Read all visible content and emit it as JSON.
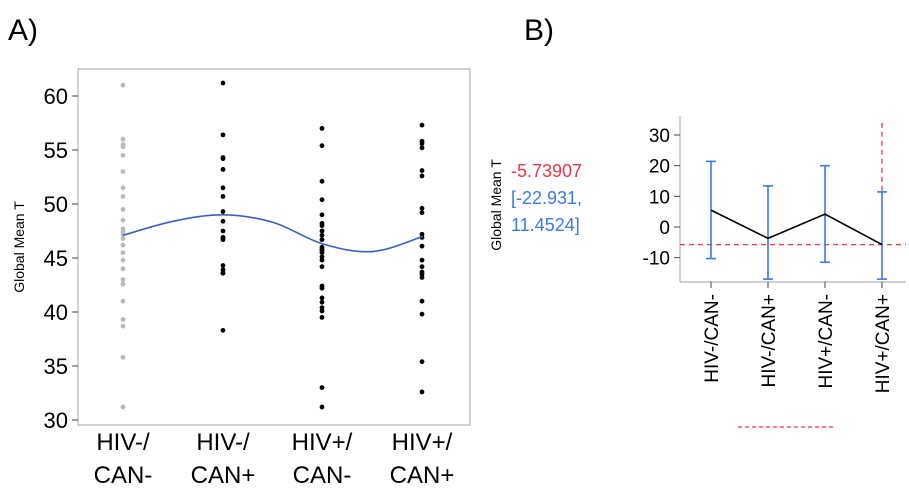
{
  "panel_a": {
    "label": "A)",
    "chart_data": {
      "type": "scatter",
      "ylabel": "Global Mean T",
      "ylim": [
        30,
        62
      ],
      "yticks": [
        30,
        35,
        40,
        45,
        50,
        55,
        60
      ],
      "categories": [
        [
          "HIV-/",
          "CAN-"
        ],
        [
          "HIV-/",
          "CAN+"
        ],
        [
          "HIV+/",
          "CAN-"
        ],
        [
          "HIV+/",
          "CAN+"
        ]
      ],
      "point_colors": [
        "#b9b9b9",
        "#000000",
        "#000000",
        "#000000"
      ],
      "groups": [
        [
          61,
          56,
          55.5,
          55.3,
          54.5,
          53,
          51.5,
          50.7,
          49.5,
          48.5,
          47.7,
          47.4,
          47.2,
          46.8,
          46.2,
          45.5,
          44.8,
          44,
          43,
          42.6,
          42.6,
          41,
          39.3,
          38.7,
          35.8,
          31.2
        ],
        [
          61.2,
          56.4,
          54.3,
          54.2,
          53.2,
          51.5,
          50.7,
          49.3,
          48.4,
          47.5,
          46.9,
          46.9,
          46.7,
          44.3,
          43.9,
          43.6,
          43.6,
          38.3
        ],
        [
          57,
          55.4,
          52.1,
          50.4,
          49,
          48.2,
          48,
          47.5,
          47.1,
          46.7,
          46,
          45.8,
          45.7,
          45.5,
          45.1,
          44.8,
          44.2,
          42.4,
          42.2,
          41.3,
          40.9,
          40.4,
          40.1,
          39.5,
          33,
          31.2
        ],
        [
          57.3,
          55.8,
          55.6,
          55.2,
          53.1,
          52.6,
          49.6,
          49.2,
          47.2,
          46.9,
          46.1,
          44.8,
          44.2,
          43.7,
          43.5,
          43.2,
          41,
          39.8,
          35.4,
          32.6
        ]
      ],
      "smoother": [
        [
          0,
          47.1
        ],
        [
          0.5,
          48.4
        ],
        [
          1,
          49
        ],
        [
          1.5,
          48.3
        ],
        [
          2,
          46.3
        ],
        [
          2.5,
          45.6
        ],
        [
          3,
          47
        ]
      ],
      "smoother_color": "#3a5fc4"
    }
  },
  "panel_b": {
    "label": "B)",
    "ylabel": "Global Mean T",
    "estimate": "-5.73907",
    "ci_line1": "[-22.931,",
    "ci_line2": "11.4524]",
    "estimate_color": "#e8364a",
    "ci_color": "#3a7be0",
    "chart_data": {
      "type": "line",
      "categories": [
        "HIV-/CAN-",
        "HIV-/CAN+",
        "HIV+/CAN-",
        "HIV+/CAN+"
      ],
      "ylim": [
        -17,
        35
      ],
      "yticks": [
        -10,
        0,
        10,
        20,
        30
      ],
      "means": [
        5.5,
        -3.7,
        4.2,
        -5.74
      ],
      "lower": [
        -10.3,
        -17,
        -11.5,
        -17
      ],
      "upper": [
        21.4,
        13.4,
        20,
        11.45
      ],
      "reference_line": -5.74,
      "mean_line_color": "#000000",
      "errorbar_color": "#3a7be0",
      "reference_color": "#e8364a"
    }
  }
}
